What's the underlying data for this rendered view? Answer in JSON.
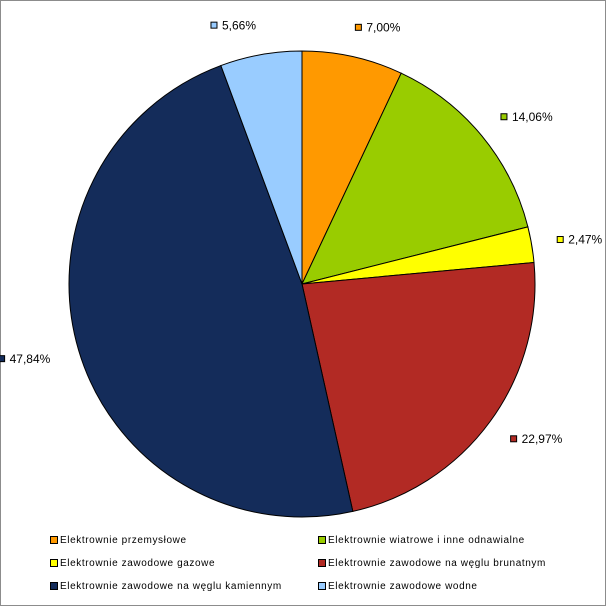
{
  "chart_data": {
    "type": "pie",
    "slices": [
      {
        "label": "Elektrownie przemysłowe",
        "value": 7.0,
        "value_label": "7,00%",
        "color": "#ff9900"
      },
      {
        "label": "Elektrownie wiatrowe i inne odnawialne",
        "value": 14.06,
        "value_label": "14,06%",
        "color": "#99cc00"
      },
      {
        "label": "Elektrownie zawodowe gazowe",
        "value": 2.47,
        "value_label": "2,47%",
        "color": "#ffff00"
      },
      {
        "label": "Elektrownie zawodowe na węglu brunatnym",
        "value": 22.97,
        "value_label": "22,97%",
        "color": "#b22a24"
      },
      {
        "label": "Elektrownie zawodowe na węglu kamiennym",
        "value": 47.84,
        "value_label": "47,84%",
        "color": "#142c5a"
      },
      {
        "label": "Elektrownie zawodowe wodne",
        "value": 5.66,
        "value_label": "5,66%",
        "color": "#99ccff"
      }
    ],
    "start_angle_deg": 0,
    "direction": "clockwise",
    "legend_position": "bottom"
  }
}
